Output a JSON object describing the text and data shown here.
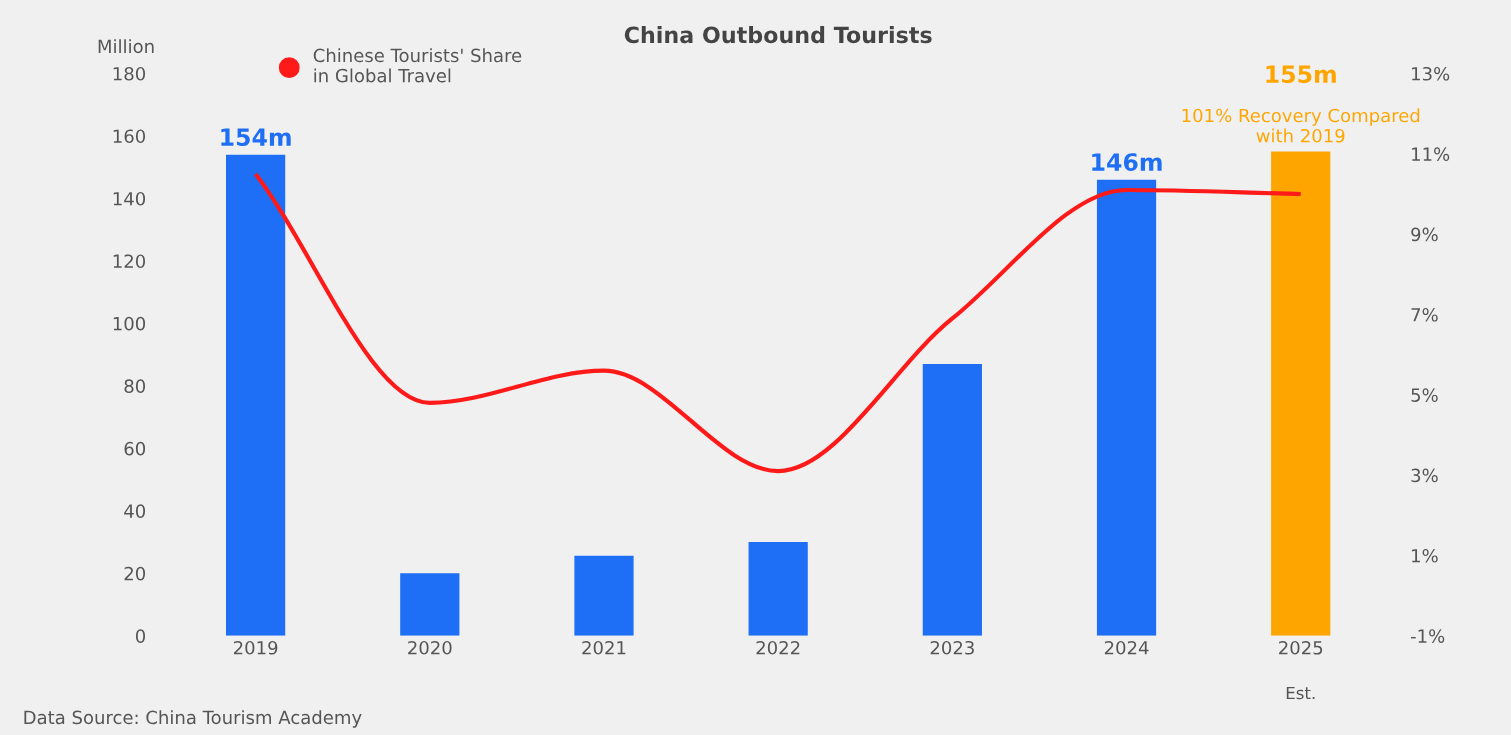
{
  "chart_data": {
    "type": "bar",
    "title": "China Outbound Tourists",
    "ylabel": "Million",
    "categories": [
      "2019",
      "2020",
      "2021",
      "2022",
      "2023",
      "2024",
      "2025"
    ],
    "ylim": [
      0,
      180
    ],
    "yticks": [
      0,
      20,
      40,
      60,
      80,
      100,
      120,
      140,
      160,
      180
    ],
    "y2lim": [
      -1,
      13
    ],
    "y2ticks": [
      {
        "value": -1,
        "label": "-1%"
      },
      {
        "value": 1,
        "label": "1%"
      },
      {
        "value": 3,
        "label": "3%"
      },
      {
        "value": 5,
        "label": "5%"
      },
      {
        "value": 7,
        "label": "7%"
      },
      {
        "value": 9,
        "label": "9%"
      },
      {
        "value": 11,
        "label": "11%"
      },
      {
        "value": 13,
        "label": "13%"
      }
    ],
    "grid": false,
    "legend": "top left",
    "series": [
      {
        "colors": [
          "#1e6ff5",
          "#1e6ff5",
          "#1e6ff5",
          "#1e6ff5",
          "#1e6ff5",
          "#1e6ff5",
          "#ffa500"
        ],
        "values": [
          154,
          20,
          25.6,
          30,
          87,
          146,
          155
        ],
        "value_labels": [
          "154m",
          null,
          null,
          null,
          null,
          "146m",
          "155m"
        ]
      },
      {
        "type": "line",
        "axis": "y2",
        "name": "Chinese Tourists' Share in Global Travel",
        "color": "#ff1a1a",
        "marker": "none",
        "line_style": "solid",
        "values": [
          10.5,
          4.8,
          5.6,
          3.1,
          6.9,
          10.1,
          10.0
        ]
      }
    ],
    "annotations": [
      {
        "text": "101% Recovery Compared with 2019",
        "x": "2025",
        "y": 155
      },
      "Est.",
      "Data Source: China Tourism Academy"
    ]
  }
}
